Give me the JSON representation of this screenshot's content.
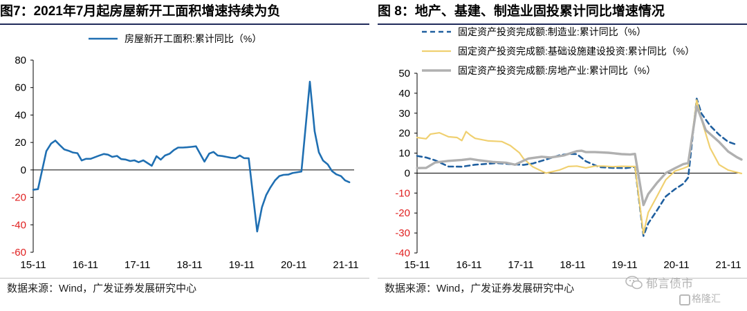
{
  "left": {
    "title": "图7：2021年7月起房屋新开工面积增速持续为负",
    "source": "数据来源：Wind，广发证券发展研究中心",
    "chart_data": {
      "type": "line",
      "xlabel": "",
      "ylabel": "",
      "ylim": [
        -60,
        80
      ],
      "yticks": [
        80,
        60,
        40,
        20,
        0,
        -20,
        -40,
        -60
      ],
      "x_ticklabels": [
        "15-11",
        "16-11",
        "17-11",
        "18-11",
        "19-11",
        "20-11",
        "21-11"
      ],
      "x_range": [
        2015.83,
        2021.92
      ],
      "legend_position": "top-center",
      "grid": false,
      "series": [
        {
          "name": "房屋新开工面积:累计同比（%）",
          "color": "#1f6fb2",
          "points": [
            [
              2015.83,
              -14.5
            ],
            [
              2015.92,
              -14.0
            ],
            [
              2016.08,
              13.7
            ],
            [
              2016.17,
              19.2
            ],
            [
              2016.25,
              21.4
            ],
            [
              2016.33,
              18.2
            ],
            [
              2016.42,
              14.9
            ],
            [
              2016.5,
              14.0
            ],
            [
              2016.58,
              12.7
            ],
            [
              2016.67,
              12.2
            ],
            [
              2016.75,
              6.9
            ],
            [
              2016.83,
              8.1
            ],
            [
              2016.92,
              8.1
            ],
            [
              2017.08,
              10.4
            ],
            [
              2017.17,
              11.6
            ],
            [
              2017.25,
              11.1
            ],
            [
              2017.33,
              9.5
            ],
            [
              2017.42,
              10.2
            ],
            [
              2017.5,
              7.9
            ],
            [
              2017.58,
              7.6
            ],
            [
              2017.67,
              6.5
            ],
            [
              2017.75,
              7.0
            ],
            [
              2017.83,
              5.6
            ],
            [
              2017.92,
              7.0
            ],
            [
              2018.08,
              3.0
            ],
            [
              2018.17,
              10.0
            ],
            [
              2018.25,
              7.5
            ],
            [
              2018.33,
              10.5
            ],
            [
              2018.42,
              11.8
            ],
            [
              2018.5,
              14.5
            ],
            [
              2018.58,
              16.3
            ],
            [
              2018.67,
              16.3
            ],
            [
              2018.75,
              16.5
            ],
            [
              2018.83,
              16.8
            ],
            [
              2018.92,
              17.2
            ],
            [
              2019.08,
              6.0
            ],
            [
              2019.17,
              11.9
            ],
            [
              2019.25,
              13.1
            ],
            [
              2019.33,
              10.5
            ],
            [
              2019.42,
              10.1
            ],
            [
              2019.5,
              9.5
            ],
            [
              2019.58,
              8.9
            ],
            [
              2019.67,
              8.6
            ],
            [
              2019.75,
              10.5
            ],
            [
              2019.83,
              8.6
            ],
            [
              2019.92,
              8.5
            ],
            [
              2020.08,
              -44.9
            ],
            [
              2020.17,
              -27.2
            ],
            [
              2020.25,
              -18.4
            ],
            [
              2020.33,
              -12.8
            ],
            [
              2020.42,
              -7.6
            ],
            [
              2020.5,
              -4.5
            ],
            [
              2020.58,
              -3.6
            ],
            [
              2020.67,
              -3.4
            ],
            [
              2020.75,
              -2.3
            ],
            [
              2020.83,
              -1.8
            ],
            [
              2020.92,
              -1.2
            ],
            [
              2021.08,
              64.3
            ],
            [
              2021.17,
              28.2
            ],
            [
              2021.25,
              12.8
            ],
            [
              2021.33,
              6.9
            ],
            [
              2021.42,
              4.0
            ],
            [
              2021.5,
              -0.9
            ],
            [
              2021.58,
              -3.2
            ],
            [
              2021.67,
              -4.5
            ],
            [
              2021.75,
              -7.7
            ],
            [
              2021.83,
              -9.0
            ]
          ]
        }
      ]
    }
  },
  "right": {
    "title": "图 8：地产、基建、制造业固投累计同比增速情况",
    "source": "数据来源：Wind，广发证券发展研究中心",
    "chart_data": {
      "type": "line",
      "xlabel": "",
      "ylabel": "",
      "ylim": [
        -40,
        50
      ],
      "yticks": [
        50,
        40,
        30,
        20,
        10,
        0,
        -10,
        -20,
        -30,
        -40
      ],
      "x_ticklabels": [
        "15-11",
        "16-11",
        "17-11",
        "18-11",
        "19-11",
        "20-11",
        "21-11"
      ],
      "x_range": [
        2015.83,
        2021.92
      ],
      "legend_position": "top-left",
      "grid": false,
      "series": [
        {
          "name": "固定资产投资完成额:制造业:累计同比（%）",
          "color": "#1f5f9f",
          "style": "dashed",
          "points": [
            [
              2015.83,
              8.6
            ],
            [
              2016.0,
              7.8
            ],
            [
              2016.17,
              6.4
            ],
            [
              2016.42,
              3.3
            ],
            [
              2016.67,
              3.2
            ],
            [
              2016.92,
              4.2
            ],
            [
              2017.08,
              4.5
            ],
            [
              2017.33,
              5.0
            ],
            [
              2017.58,
              4.5
            ],
            [
              2017.83,
              4.1
            ],
            [
              2018.0,
              4.8
            ],
            [
              2018.25,
              6.8
            ],
            [
              2018.5,
              8.9
            ],
            [
              2018.67,
              9.6
            ],
            [
              2018.83,
              9.5
            ],
            [
              2019.0,
              5.9
            ],
            [
              2019.25,
              3.0
            ],
            [
              2019.5,
              2.6
            ],
            [
              2019.75,
              2.5
            ],
            [
              2019.92,
              3.1
            ],
            [
              2020.08,
              -31.5
            ],
            [
              2020.17,
              -25.2
            ],
            [
              2020.33,
              -18.8
            ],
            [
              2020.5,
              -11.7
            ],
            [
              2020.67,
              -8.1
            ],
            [
              2020.83,
              -5.3
            ],
            [
              2020.92,
              -2.2
            ],
            [
              2021.08,
              37.3
            ],
            [
              2021.17,
              29.8
            ],
            [
              2021.33,
              23.8
            ],
            [
              2021.5,
              19.2
            ],
            [
              2021.67,
              15.7
            ],
            [
              2021.83,
              14.2
            ]
          ]
        },
        {
          "name": "固定资产投资完成额:基础设施建设投资:累计同比（%）",
          "color": "#f0d070",
          "style": "solid",
          "points": [
            [
              2015.83,
              17.8
            ],
            [
              2016.0,
              17.2
            ],
            [
              2016.08,
              19.5
            ],
            [
              2016.25,
              20.2
            ],
            [
              2016.42,
              18.2
            ],
            [
              2016.58,
              17.8
            ],
            [
              2016.67,
              16.3
            ],
            [
              2016.75,
              20.8
            ],
            [
              2016.83,
              19.0
            ],
            [
              2016.92,
              17.4
            ],
            [
              2017.17,
              16.1
            ],
            [
              2017.42,
              15.8
            ],
            [
              2017.58,
              13.8
            ],
            [
              2017.75,
              10.2
            ],
            [
              2017.83,
              7.2
            ],
            [
              2018.0,
              3.2
            ],
            [
              2018.17,
              1.0
            ],
            [
              2018.25,
              0.0
            ],
            [
              2018.5,
              1.5
            ],
            [
              2018.67,
              3.3
            ],
            [
              2018.83,
              3.5
            ],
            [
              2019.0,
              2.6
            ],
            [
              2019.17,
              3.5
            ],
            [
              2019.33,
              3.5
            ],
            [
              2019.5,
              3.2
            ],
            [
              2019.67,
              3.4
            ],
            [
              2019.83,
              3.3
            ],
            [
              2019.92,
              3.3
            ],
            [
              2020.08,
              -30.3
            ],
            [
              2020.17,
              -19.7
            ],
            [
              2020.33,
              -11.8
            ],
            [
              2020.5,
              -3.3
            ],
            [
              2020.67,
              1.0
            ],
            [
              2020.83,
              2.4
            ],
            [
              2020.92,
              3.4
            ],
            [
              2021.08,
              36.6
            ],
            [
              2021.17,
              26.8
            ],
            [
              2021.33,
              12.6
            ],
            [
              2021.5,
              4.2
            ],
            [
              2021.67,
              1.5
            ],
            [
              2021.83,
              0.4
            ],
            [
              2021.92,
              -0.2
            ]
          ]
        },
        {
          "name": "固定资产投资完成额:房地产业:累计同比（%）",
          "color": "#b0b0b0",
          "style": "solid",
          "points": [
            [
              2015.83,
              2.5
            ],
            [
              2016.0,
              2.6
            ],
            [
              2016.17,
              5.3
            ],
            [
              2016.42,
              6.1
            ],
            [
              2016.67,
              6.6
            ],
            [
              2016.83,
              7.1
            ],
            [
              2017.0,
              6.4
            ],
            [
              2017.25,
              5.6
            ],
            [
              2017.5,
              5.2
            ],
            [
              2017.67,
              4.2
            ],
            [
              2017.83,
              6.2
            ],
            [
              2017.92,
              7.3
            ],
            [
              2018.17,
              8.2
            ],
            [
              2018.33,
              7.8
            ],
            [
              2018.58,
              8.8
            ],
            [
              2018.83,
              11.0
            ],
            [
              2018.92,
              11.2
            ],
            [
              2019.0,
              10.5
            ],
            [
              2019.17,
              10.5
            ],
            [
              2019.42,
              10.2
            ],
            [
              2019.67,
              9.5
            ],
            [
              2019.83,
              9.3
            ],
            [
              2019.92,
              9.6
            ],
            [
              2020.08,
              -16.0
            ],
            [
              2020.17,
              -10.5
            ],
            [
              2020.33,
              -5.0
            ],
            [
              2020.5,
              0.0
            ],
            [
              2020.67,
              2.4
            ],
            [
              2020.83,
              4.5
            ],
            [
              2020.92,
              5.0
            ],
            [
              2021.08,
              33.5
            ],
            [
              2021.25,
              21.5
            ],
            [
              2021.5,
              15.6
            ],
            [
              2021.67,
              10.8
            ],
            [
              2021.83,
              8.0
            ],
            [
              2021.92,
              6.8
            ]
          ]
        }
      ]
    }
  },
  "watermark": {
    "brand_text": "郁言债市",
    "brand_sub": "格隆汇",
    "icon": "wechat-icon"
  }
}
